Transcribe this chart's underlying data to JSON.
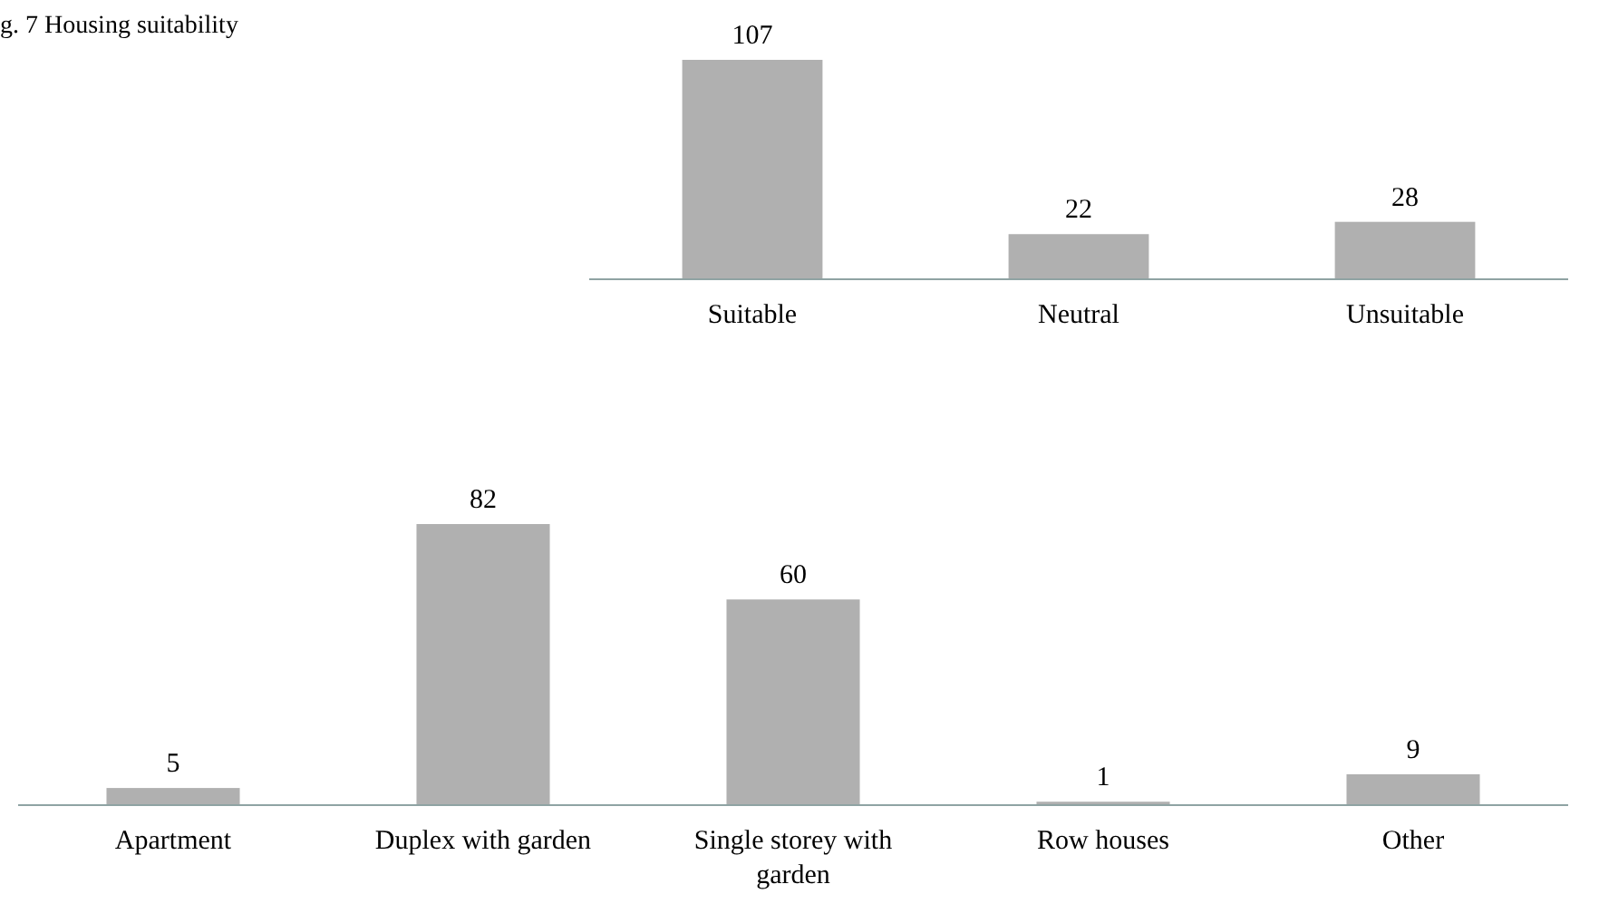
{
  "chart_data": [
    {
      "type": "other",
      "title": "g. 7 Housing suitability"
    },
    {
      "type": "bar",
      "categories": [
        "Suitable",
        "Neutral",
        "Unsuitable"
      ],
      "values": [
        107,
        22,
        28
      ],
      "color": "#b0b0b0",
      "data_labels": true
    },
    {
      "type": "bar",
      "categories": [
        "Apartment",
        "Duplex with garden",
        "Single storey with garden",
        "Row houses",
        "Other"
      ],
      "values": [
        5,
        82,
        60,
        1,
        9
      ],
      "color": "#b0b0b0",
      "data_labels": true
    }
  ]
}
